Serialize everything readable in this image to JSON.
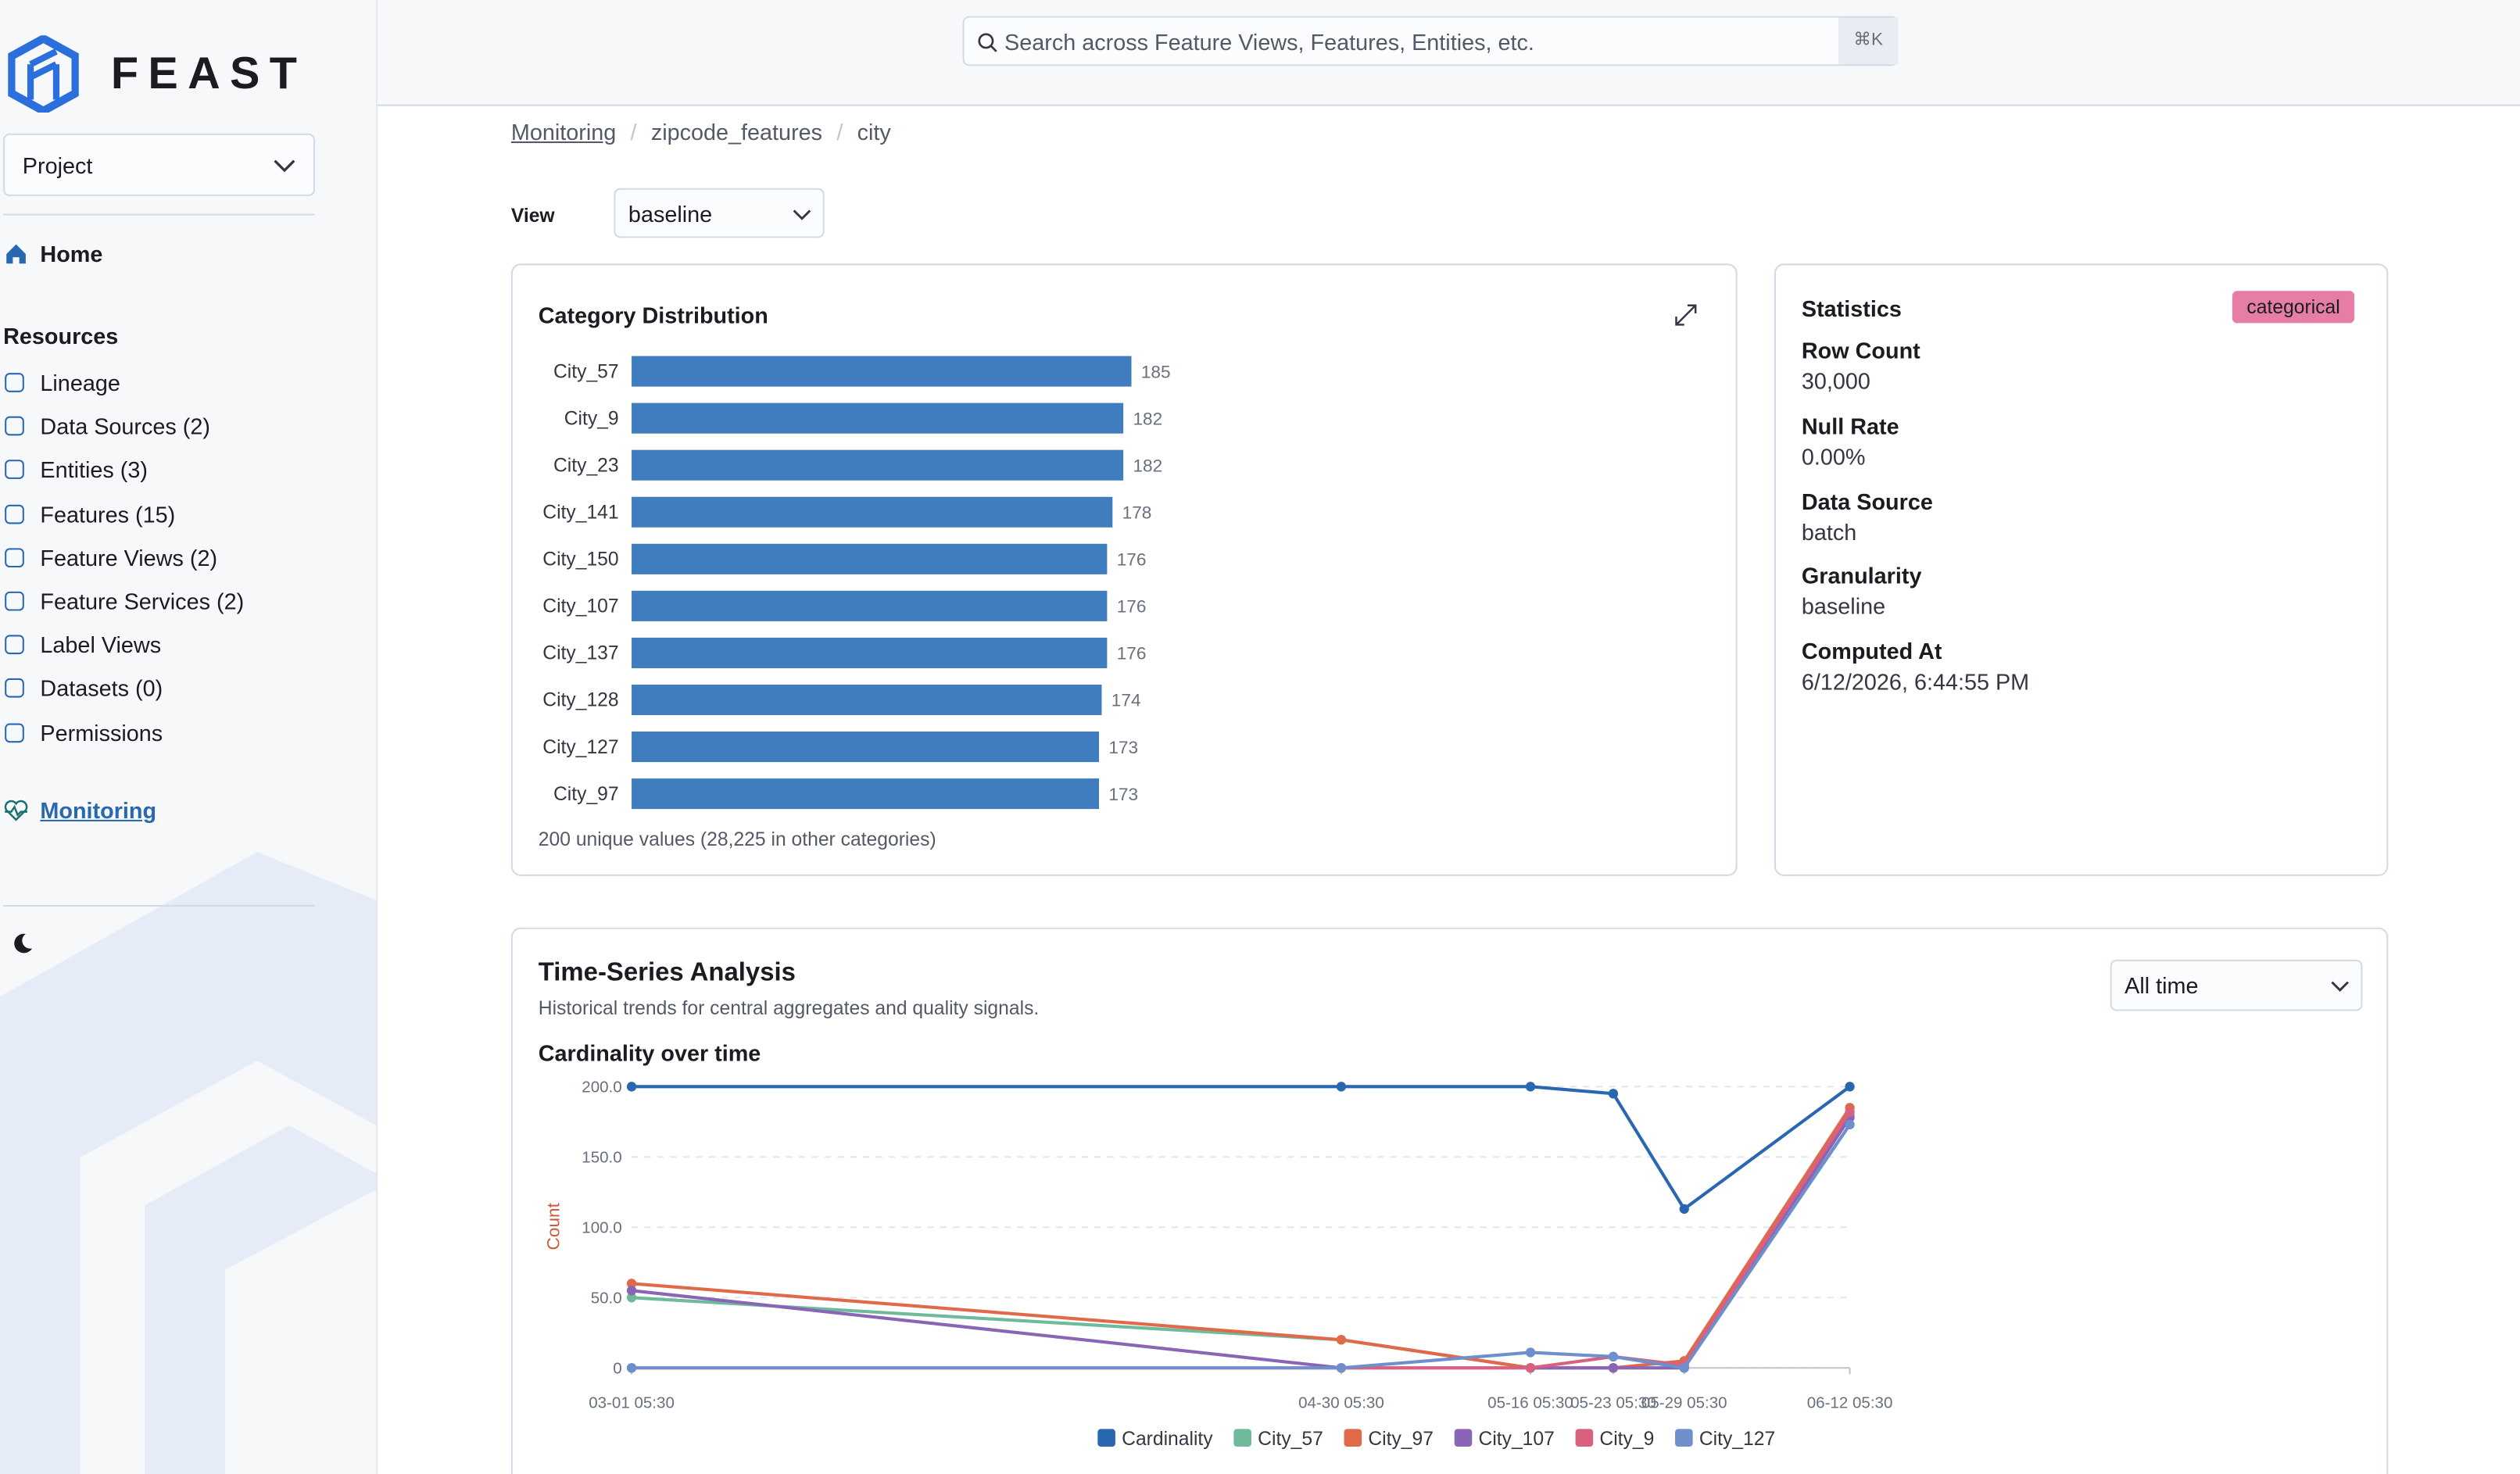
{
  "sidebar": {
    "brand": "FEAST",
    "project": "Project",
    "home": "Home",
    "resources_heading": "Resources",
    "items": [
      "Lineage",
      "Data Sources (2)",
      "Entities (3)",
      "Features (15)",
      "Feature Views (2)",
      "Feature Services (2)",
      "Label Views",
      "Datasets (0)",
      "Permissions"
    ],
    "monitoring": "Monitoring"
  },
  "search": {
    "placeholder": "Search across Feature Views, Features, Entities, etc.",
    "shortcut": "⌘K"
  },
  "breadcrumb": [
    "Monitoring",
    "zipcode_features",
    "city"
  ],
  "view": {
    "label": "View",
    "value": "baseline"
  },
  "category_footer": "200 unique values (28,225 in other categories)",
  "statistics": {
    "title": "Statistics",
    "badge": "categorical",
    "fields": [
      {
        "label": "Row Count",
        "value": "30,000"
      },
      {
        "label": "Null Rate",
        "value": "0.00%"
      },
      {
        "label": "Data Source",
        "value": "batch"
      },
      {
        "label": "Granularity",
        "value": "baseline"
      },
      {
        "label": "Computed At",
        "value": "6/12/2026, 6:44:55 PM"
      }
    ]
  },
  "time_series": {
    "title": "Time-Series Analysis",
    "subtitle": "Historical trends for central aggregates and quality signals.",
    "range": "All time"
  },
  "chart_data": [
    {
      "type": "bar",
      "orientation": "horizontal",
      "title": "Category Distribution",
      "color": "#3f7dbf",
      "categories": [
        "City_57",
        "City_9",
        "City_23",
        "City_141",
        "City_150",
        "City_107",
        "City_137",
        "City_128",
        "City_127",
        "City_97"
      ],
      "values": [
        185,
        182,
        182,
        178,
        176,
        176,
        176,
        174,
        173,
        173
      ]
    },
    {
      "type": "line",
      "title": "Cardinality over time",
      "ylabel": "Count",
      "x": [
        "03-01 05:30",
        "04-30 05:30",
        "05-16 05:30",
        "05-23 05:30",
        "05-29 05:30",
        "06-12 05:30"
      ],
      "ylim": [
        0,
        200
      ],
      "yticks": [
        0,
        {
          "value": 50,
          "label": "50.0"
        },
        {
          "value": 100,
          "label": "100.0"
        },
        {
          "value": 150,
          "label": "150.0"
        },
        {
          "value": 200,
          "label": "200.0"
        }
      ],
      "grid": true,
      "series": [
        {
          "name": "Cardinality",
          "color": "#2a67b1",
          "values": [
            200,
            200,
            200,
            195,
            113,
            200
          ]
        },
        {
          "name": "City_57",
          "color": "#6dbb9b",
          "values": [
            50,
            20,
            0,
            0,
            0,
            180
          ]
        },
        {
          "name": "City_97",
          "color": "#e0694a",
          "values": [
            60,
            20,
            0,
            0,
            5,
            185
          ]
        },
        {
          "name": "City_107",
          "color": "#8a64b5",
          "values": [
            55,
            0,
            0,
            0,
            0,
            178
          ]
        },
        {
          "name": "City_9",
          "color": "#d9607f",
          "values": [
            0,
            0,
            0,
            8,
            2,
            182
          ]
        },
        {
          "name": "City_127",
          "color": "#6e8fcb",
          "values": [
            0,
            0,
            11,
            8,
            0,
            173
          ]
        }
      ]
    }
  ]
}
